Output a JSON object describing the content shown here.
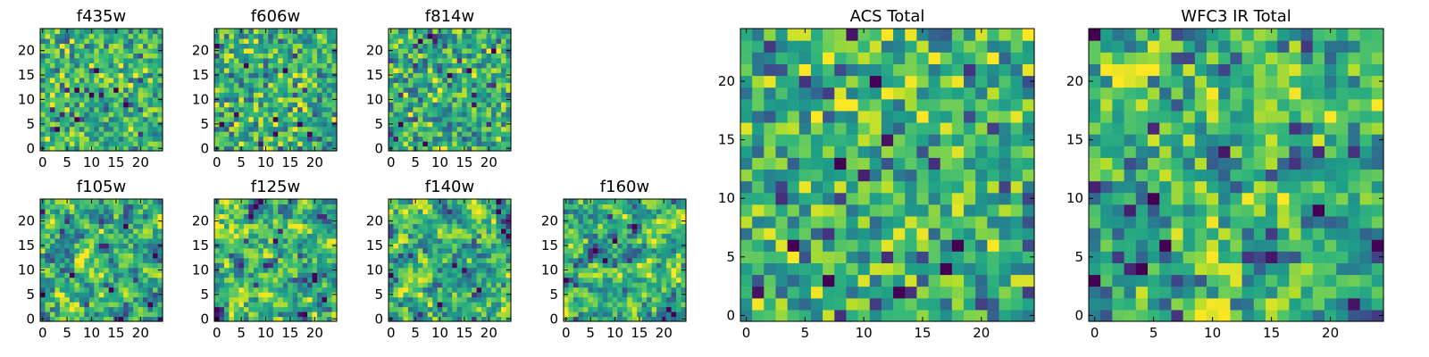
{
  "chart_data": [
    {
      "type": "heatmap",
      "title": "f435w",
      "xlim": [
        -0.5,
        24.5
      ],
      "ylim": [
        -0.5,
        24.5
      ],
      "xticks": [
        0,
        5,
        10,
        15,
        20
      ],
      "yticks": [
        0,
        5,
        10,
        15,
        20
      ],
      "grid": 25,
      "colormap": "viridis",
      "texture": "pixel-noise"
    },
    {
      "type": "heatmap",
      "title": "f606w",
      "xlim": [
        -0.5,
        24.5
      ],
      "ylim": [
        -0.5,
        24.5
      ],
      "xticks": [
        0,
        5,
        10,
        15,
        20
      ],
      "yticks": [
        0,
        5,
        10,
        15,
        20
      ],
      "grid": 25,
      "colormap": "viridis",
      "texture": "pixel-noise"
    },
    {
      "type": "heatmap",
      "title": "f814w",
      "xlim": [
        -0.5,
        24.5
      ],
      "ylim": [
        -0.5,
        24.5
      ],
      "xticks": [
        0,
        5,
        10,
        15,
        20
      ],
      "yticks": [
        0,
        5,
        10,
        15,
        20
      ],
      "grid": 25,
      "colormap": "viridis",
      "texture": "pixel-noise"
    },
    {
      "type": "heatmap",
      "title": "f105w",
      "xlim": [
        -0.5,
        24.5
      ],
      "ylim": [
        -0.5,
        24.5
      ],
      "xticks": [
        0,
        5,
        10,
        15,
        20
      ],
      "yticks": [
        0,
        5,
        10,
        15,
        20
      ],
      "grid": 25,
      "colormap": "viridis",
      "texture": "correlated-noise"
    },
    {
      "type": "heatmap",
      "title": "f125w",
      "xlim": [
        -0.5,
        24.5
      ],
      "ylim": [
        -0.5,
        24.5
      ],
      "xticks": [
        0,
        5,
        10,
        15,
        20
      ],
      "yticks": [
        0,
        5,
        10,
        15,
        20
      ],
      "grid": 25,
      "colormap": "viridis",
      "texture": "correlated-noise"
    },
    {
      "type": "heatmap",
      "title": "f140w",
      "xlim": [
        -0.5,
        24.5
      ],
      "ylim": [
        -0.5,
        24.5
      ],
      "xticks": [
        0,
        5,
        10,
        15,
        20
      ],
      "yticks": [
        0,
        5,
        10,
        15,
        20
      ],
      "grid": 25,
      "colormap": "viridis",
      "texture": "correlated-noise"
    },
    {
      "type": "heatmap",
      "title": "f160w",
      "xlim": [
        -0.5,
        24.5
      ],
      "ylim": [
        -0.5,
        24.5
      ],
      "xticks": [
        0,
        5,
        10,
        15,
        20
      ],
      "yticks": [
        0,
        5,
        10,
        15,
        20
      ],
      "grid": 25,
      "colormap": "viridis",
      "texture": "correlated-noise"
    },
    {
      "type": "heatmap",
      "title": "ACS Total",
      "xlim": [
        -0.5,
        24.5
      ],
      "ylim": [
        -0.5,
        24.5
      ],
      "xticks": [
        0,
        5,
        10,
        15,
        20
      ],
      "yticks": [
        0,
        5,
        10,
        15,
        20
      ],
      "grid": 25,
      "colormap": "viridis",
      "texture": "pixel-noise"
    },
    {
      "type": "heatmap",
      "title": "WFC3 IR Total",
      "xlim": [
        -0.5,
        24.5
      ],
      "ylim": [
        -0.5,
        24.5
      ],
      "xticks": [
        0,
        5,
        10,
        15,
        20
      ],
      "yticks": [
        0,
        5,
        10,
        15,
        20
      ],
      "grid": 25,
      "colormap": "viridis",
      "texture": "smooth-noise"
    }
  ]
}
